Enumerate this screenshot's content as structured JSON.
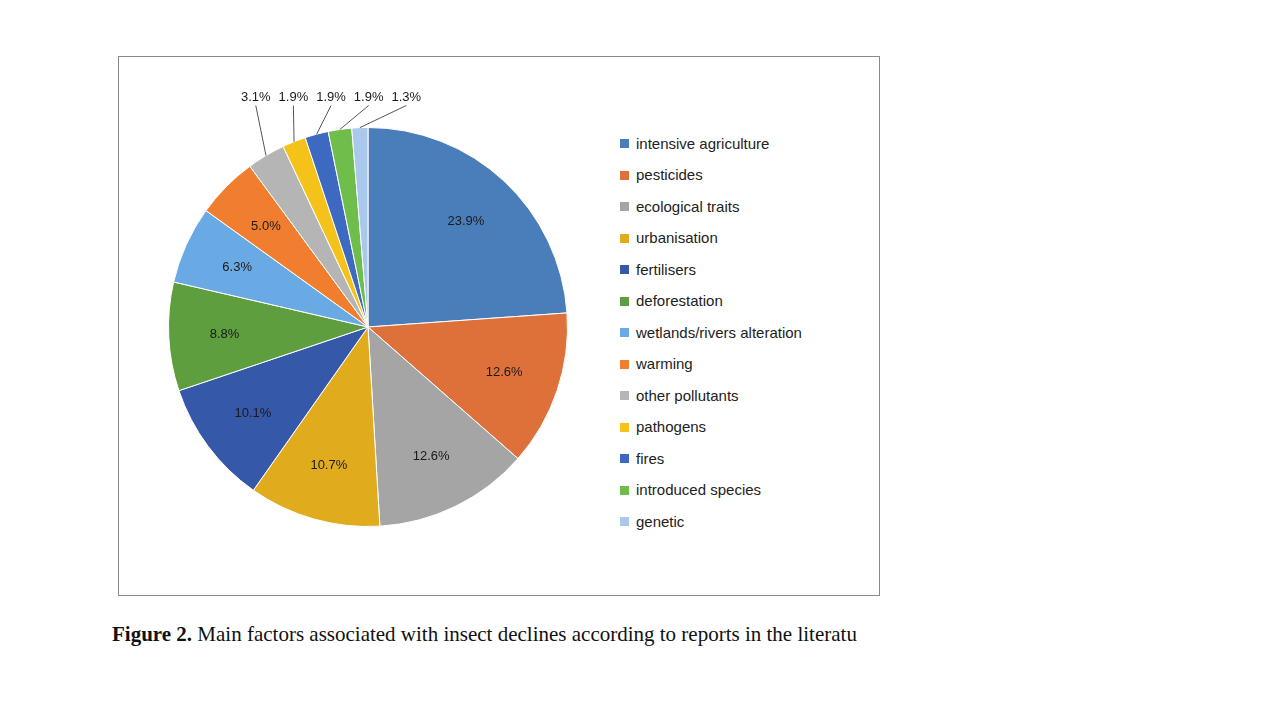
{
  "chart_data": {
    "type": "pie",
    "categories": [
      "intensive agriculture",
      "pesticides",
      "ecological traits",
      "urbanisation",
      "fertilisers",
      "deforestation",
      "wetlands/rivers alteration",
      "warming",
      "other pollutants",
      "pathogens",
      "fires",
      "introduced species",
      "genetic"
    ],
    "values": [
      23.9,
      12.6,
      12.6,
      10.7,
      10.1,
      8.8,
      6.3,
      5.0,
      3.1,
      1.9,
      1.9,
      1.9,
      1.3
    ],
    "value_labels": [
      "23.9%",
      "12.6%",
      "12.6%",
      "10.7%",
      "10.1%",
      "8.8%",
      "6.3%",
      "5.0%",
      "3.1%",
      "1.9%",
      "1.9%",
      "1.9%",
      "1.3%"
    ],
    "colors": [
      "#4a7ebb",
      "#dd7139",
      "#a5a5a5",
      "#e0ac1e",
      "#3558a8",
      "#5e9e3e",
      "#6aaae4",
      "#f07e2e",
      "#b5b5b5",
      "#f5c21a",
      "#3d6ac0",
      "#6fbd4a",
      "#a9c8ec"
    ],
    "data_labels": true,
    "legend": "right"
  },
  "figure": {
    "label": "Figure 2.",
    "caption": "Main factors associated with insect declines according to reports in the literatu"
  }
}
